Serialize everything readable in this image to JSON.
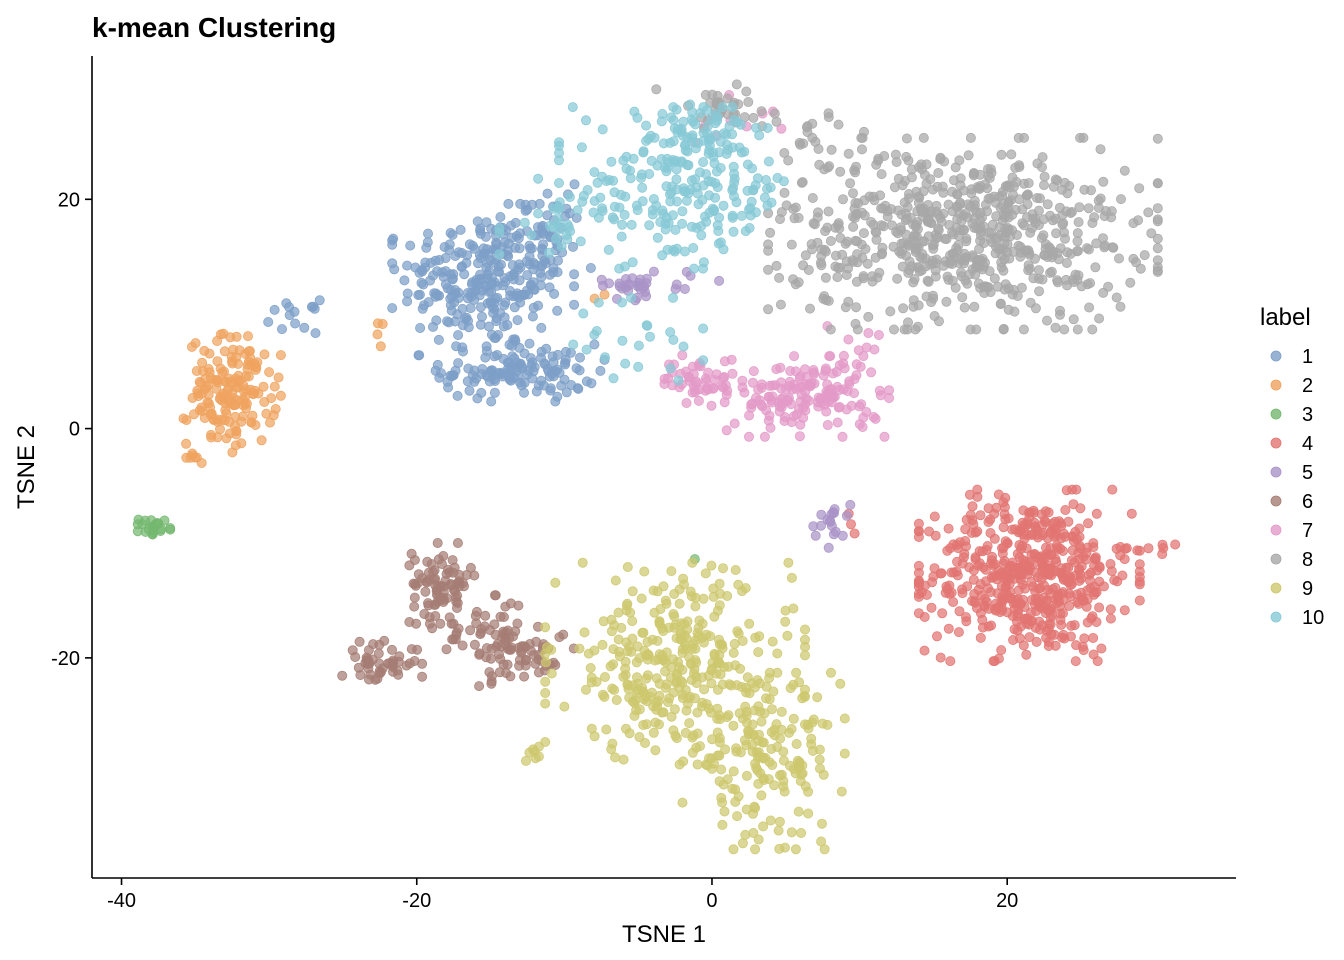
{
  "chart_data": {
    "type": "scatter",
    "title": "k-mean Clustering",
    "xlabel": "TSNE 1",
    "ylabel": "TSNE 2",
    "xlim": [
      -42,
      35.5
    ],
    "ylim": [
      -39.2,
      32.5
    ],
    "x_ticks": [
      -40,
      -20,
      0,
      20
    ],
    "x_tick_labels": [
      "-40",
      "-20",
      "0",
      "20"
    ],
    "y_ticks": [
      -20,
      0,
      20
    ],
    "y_tick_labels": [
      "-20",
      "0",
      "20"
    ],
    "legend_title": "label",
    "legend_position": "right",
    "series": [
      {
        "name": "1",
        "color": "#7d9fc8",
        "clusters": [
          {
            "cx": -15.5,
            "cy": 13,
            "sx": 2.8,
            "sy": 3,
            "n": 260
          },
          {
            "cx": -13,
            "cy": 5,
            "sx": 2.6,
            "sy": 1.2,
            "n": 130
          },
          {
            "cx": -11.5,
            "cy": 16.5,
            "sx": 1.5,
            "sy": 2.2,
            "n": 50
          },
          {
            "cx": -28.3,
            "cy": 9.8,
            "sx": 0.8,
            "sy": 0.7,
            "n": 14
          }
        ]
      },
      {
        "name": "2",
        "color": "#f0a35f",
        "clusters": [
          {
            "cx": -32.5,
            "cy": 3.2,
            "sx": 1.5,
            "sy": 2.4,
            "n": 160
          },
          {
            "cx": -35,
            "cy": -2.5,
            "sx": 0.3,
            "sy": 0.5,
            "n": 7
          },
          {
            "cx": -22.5,
            "cy": 8.5,
            "sx": 0.3,
            "sy": 0.6,
            "n": 4
          },
          {
            "cx": -7.8,
            "cy": 12,
            "sx": 0.3,
            "sy": 0.3,
            "n": 2
          }
        ]
      },
      {
        "name": "3",
        "color": "#74b870",
        "clusters": [
          {
            "cx": -37.8,
            "cy": -8.6,
            "sx": 0.5,
            "sy": 0.4,
            "n": 22
          },
          {
            "cx": -1.2,
            "cy": -11.7,
            "sx": 0.2,
            "sy": 0.2,
            "n": 1
          }
        ]
      },
      {
        "name": "4",
        "color": "#e27471",
        "clusters": [
          {
            "cx": 21.5,
            "cy": -12.8,
            "sx": 3.4,
            "sy": 3.4,
            "n": 520
          },
          {
            "cx": 30,
            "cy": -10.5,
            "sx": 1,
            "sy": 0.4,
            "n": 8
          },
          {
            "cx": 9.5,
            "cy": -8.3,
            "sx": 0.4,
            "sy": 0.4,
            "n": 3
          }
        ]
      },
      {
        "name": "5",
        "color": "#a993c7",
        "clusters": [
          {
            "cx": -5.5,
            "cy": 12.5,
            "sx": 1.1,
            "sy": 0.6,
            "n": 28
          },
          {
            "cx": 8,
            "cy": -8.2,
            "sx": 0.7,
            "sy": 1,
            "n": 18
          },
          {
            "cx": -1.5,
            "cy": 13,
            "sx": 1.2,
            "sy": 0.4,
            "n": 6
          }
        ]
      },
      {
        "name": "6",
        "color": "#a57d74",
        "clusters": [
          {
            "cx": -18.3,
            "cy": -13.5,
            "sx": 1,
            "sy": 1.6,
            "n": 80
          },
          {
            "cx": -22.5,
            "cy": -20.5,
            "sx": 1.3,
            "sy": 0.9,
            "n": 50
          },
          {
            "cx": -15,
            "cy": -18.5,
            "sx": 1.8,
            "sy": 1.8,
            "n": 70
          },
          {
            "cx": -12,
            "cy": -19.5,
            "sx": 1.2,
            "sy": 1.2,
            "n": 35
          }
        ]
      },
      {
        "name": "7",
        "color": "#e39ac8",
        "clusters": [
          {
            "cx": 6.5,
            "cy": 2.8,
            "sx": 2.5,
            "sy": 1.6,
            "n": 150
          },
          {
            "cx": -0.8,
            "cy": 4.2,
            "sx": 1.3,
            "sy": 1,
            "n": 50
          },
          {
            "cx": 9,
            "cy": 7,
            "sx": 1.2,
            "sy": 1.2,
            "n": 12
          },
          {
            "cx": 1.5,
            "cy": 27,
            "sx": 1.5,
            "sy": 1.2,
            "n": 12
          }
        ]
      },
      {
        "name": "8",
        "color": "#a7a7a7",
        "clusters": [
          {
            "cx": 17,
            "cy": 17,
            "sx": 6,
            "sy": 3.8,
            "n": 680
          },
          {
            "cx": 1,
            "cy": 28,
            "sx": 2.2,
            "sy": 1,
            "n": 35
          },
          {
            "cx": 7,
            "cy": 25,
            "sx": 1.5,
            "sy": 1.5,
            "n": 20
          }
        ]
      },
      {
        "name": "9",
        "color": "#cdc86d",
        "clusters": [
          {
            "cx": -2.5,
            "cy": -20.5,
            "sx": 4,
            "sy": 4,
            "n": 330
          },
          {
            "cx": 3.5,
            "cy": -29,
            "sx": 2.5,
            "sy": 3.5,
            "n": 170
          },
          {
            "cx": -11.8,
            "cy": -27.9,
            "sx": 0.4,
            "sy": 0.6,
            "n": 7
          }
        ]
      },
      {
        "name": "10",
        "color": "#86c9d6",
        "clusters": [
          {
            "cx": -2,
            "cy": 21,
            "sx": 3.8,
            "sy": 3.2,
            "n": 220
          },
          {
            "cx": -1,
            "cy": 25.5,
            "sx": 1.5,
            "sy": 1.5,
            "n": 40
          },
          {
            "cx": -5,
            "cy": 7,
            "sx": 2,
            "sy": 2,
            "n": 25
          },
          {
            "cx": -10,
            "cy": 18.5,
            "sx": 2,
            "sy": 1.5,
            "n": 30
          }
        ]
      }
    ]
  }
}
